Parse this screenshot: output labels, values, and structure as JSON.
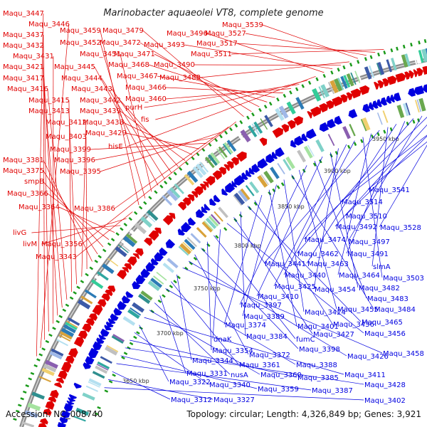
{
  "title": "Marinobacter aquaeolei VT8, complete genome",
  "footer": {
    "accession": "Accession: NC_008740",
    "summary": "Topology: circular; Length: 4,326,849 bp; Genes: 3,921"
  },
  "colors": {
    "forward": "#e00000",
    "reverse": "#0000e0",
    "backbone": "#8c8c8c",
    "gc_ring": "#1a9a1a"
  },
  "kbp_ticks": [
    "3650 kbp",
    "3700 kbp",
    "3750 kbp",
    "3800 kbp",
    "3850 kbp",
    "3900 kbp",
    "3950 kbp"
  ],
  "forward_labels": [
    "Maqu_3447",
    "Maqu_3446",
    "Maqu_3437",
    "Maqu_3432",
    "Maqu_3431",
    "Maqu_3421",
    "Maqu_3417",
    "Maqu_3416",
    "Maqu_3415",
    "Maqu_3413",
    "Maqu_3412",
    "Maqu_3403",
    "Maqu_3381",
    "Maqu_3375",
    "smpB",
    "Maqu_3366",
    "Maqu_3364",
    "livG",
    "livM",
    "Maqu_3343",
    "Maqu_3459",
    "Maqu_3452",
    "Maqu_3451",
    "Maqu_3445",
    "Maqu_3444",
    "Maqu_3443",
    "Maqu_3442",
    "Maqu_3439",
    "Maqu_3438",
    "Maqu_3429",
    "Maqu_3399",
    "Maqu_3396",
    "Maqu_3395",
    "Maqu_3386",
    "Maqu_3356",
    "Maqu_3479",
    "Maqu_3472",
    "Maqu_3471",
    "Maqu_3468",
    "Maqu_3467",
    "Maqu_3466",
    "Maqu_3460",
    "purH",
    "fis",
    "hisE",
    "Maqu_3496",
    "Maqu_3493",
    "Maqu_3490",
    "Maqu_3488",
    "Maqu_3539",
    "Maqu_3527",
    "Maqu_3517",
    "Maqu_3511"
  ],
  "reverse_labels": [
    "Maqu_3541",
    "Maqu_3514",
    "Maqu_3510",
    "Maqu_3528",
    "Maqu_3492",
    "Maqu_3474",
    "Maqu_3497",
    "Maqu_3462",
    "Maqu_3491",
    "Maqu_3463",
    "slmA",
    "Maqu_3441",
    "Maqu_3464",
    "Maqu_3503",
    "Maqu_3440",
    "Maqu_3425",
    "Maqu_3454",
    "Maqu_3482",
    "Maqu_3410",
    "Maqu_3483",
    "Maqu_3397",
    "Maqu_3455",
    "Maqu_3484",
    "Maqu_3424",
    "Maqu_3389",
    "Maqu_3401",
    "Maqu_3374",
    "Maqu_3436",
    "Maqu_3465",
    "Maqu_3384",
    "Maqu_3427",
    "Maqu_3456",
    "dnaK",
    "fumC",
    "Maqu_3354",
    "Maqu_3398",
    "Maqu_3372",
    "Maqu_3426",
    "Maqu_3458",
    "Maqu_3344",
    "Maqu_3361",
    "Maqu_3388",
    "Maqu_3331",
    "nusA",
    "Maqu_3360",
    "Maqu_3411",
    "Maqu_3322",
    "Maqu_3340",
    "Maqu_3385",
    "Maqu_3428",
    "Maqu_3359",
    "Maqu_3387",
    "Maqu_3312",
    "Maqu_3327",
    "Maqu_3402"
  ]
}
